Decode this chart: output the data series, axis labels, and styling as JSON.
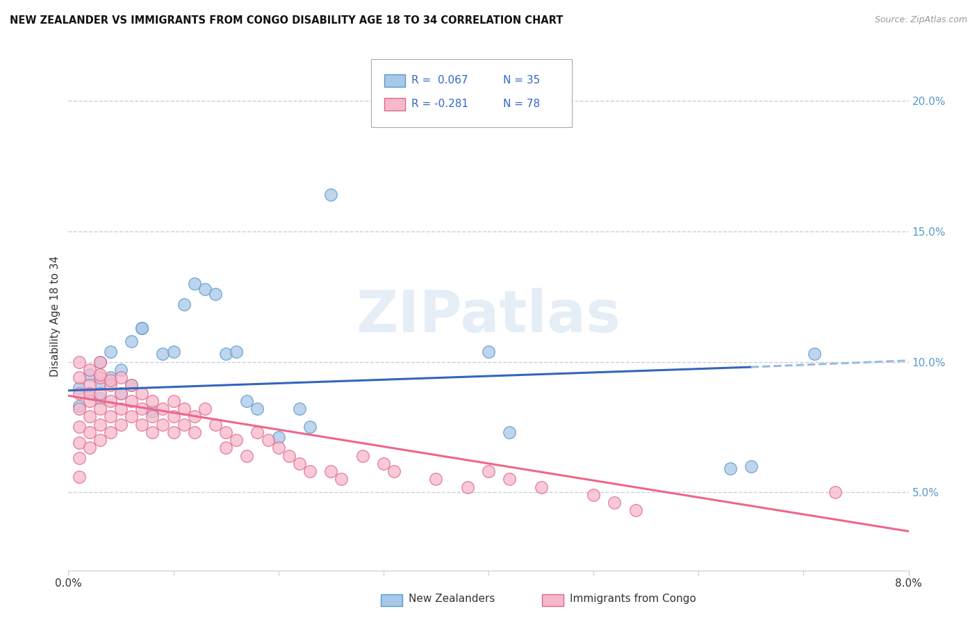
{
  "title": "NEW ZEALANDER VS IMMIGRANTS FROM CONGO DISABILITY AGE 18 TO 34 CORRELATION CHART",
  "source": "Source: ZipAtlas.com",
  "ylabel": "Disability Age 18 to 34",
  "xlim": [
    0.0,
    0.08
  ],
  "ylim": [
    0.02,
    0.215
  ],
  "xticks": [
    0.0,
    0.01,
    0.02,
    0.03,
    0.04,
    0.05,
    0.06,
    0.07,
    0.08
  ],
  "xticklabels": [
    "0.0%",
    "",
    "",
    "",
    "",
    "",
    "",
    "",
    "8.0%"
  ],
  "yticks_right": [
    0.05,
    0.1,
    0.15,
    0.2
  ],
  "ytick_labels_right": [
    "5.0%",
    "10.0%",
    "15.0%",
    "20.0%"
  ],
  "nz_color": "#a8c8e8",
  "nz_edge_color": "#5599cc",
  "congo_color": "#f8b8cc",
  "congo_edge_color": "#dd6688",
  "nz_line_color": "#3366bb",
  "congo_line_color": "#ee6688",
  "dashed_line_color": "#99bbdd",
  "watermark": "ZIPatlas",
  "background_color": "#ffffff",
  "grid_color": "#ccccdd",
  "nz_x": [
    0.001,
    0.001,
    0.002,
    0.002,
    0.003,
    0.003,
    0.003,
    0.004,
    0.004,
    0.005,
    0.005,
    0.006,
    0.006,
    0.007,
    0.007,
    0.008,
    0.009,
    0.01,
    0.011,
    0.012,
    0.013,
    0.014,
    0.015,
    0.016,
    0.017,
    0.018,
    0.02,
    0.022,
    0.023,
    0.025,
    0.04,
    0.042,
    0.063,
    0.065,
    0.071
  ],
  "nz_y": [
    0.09,
    0.083,
    0.095,
    0.088,
    0.092,
    0.086,
    0.1,
    0.094,
    0.104,
    0.097,
    0.088,
    0.091,
    0.108,
    0.113,
    0.113,
    0.081,
    0.103,
    0.104,
    0.122,
    0.13,
    0.128,
    0.126,
    0.103,
    0.104,
    0.085,
    0.082,
    0.071,
    0.082,
    0.075,
    0.164,
    0.104,
    0.073,
    0.059,
    0.06,
    0.103
  ],
  "congo_x": [
    0.001,
    0.001,
    0.001,
    0.001,
    0.001,
    0.001,
    0.001,
    0.001,
    0.002,
    0.002,
    0.002,
    0.002,
    0.002,
    0.002,
    0.002,
    0.003,
    0.003,
    0.003,
    0.003,
    0.003,
    0.003,
    0.003,
    0.004,
    0.004,
    0.004,
    0.004,
    0.004,
    0.005,
    0.005,
    0.005,
    0.005,
    0.006,
    0.006,
    0.006,
    0.007,
    0.007,
    0.007,
    0.008,
    0.008,
    0.008,
    0.009,
    0.009,
    0.01,
    0.01,
    0.01,
    0.011,
    0.011,
    0.012,
    0.012,
    0.013,
    0.014,
    0.015,
    0.015,
    0.016,
    0.017,
    0.018,
    0.019,
    0.02,
    0.021,
    0.022,
    0.023,
    0.025,
    0.026,
    0.028,
    0.03,
    0.031,
    0.035,
    0.038,
    0.04,
    0.042,
    0.045,
    0.05,
    0.052,
    0.054,
    0.073
  ],
  "congo_y": [
    0.088,
    0.094,
    0.1,
    0.082,
    0.075,
    0.069,
    0.063,
    0.056,
    0.091,
    0.097,
    0.085,
    0.079,
    0.073,
    0.067,
    0.088,
    0.094,
    0.088,
    0.082,
    0.076,
    0.095,
    0.1,
    0.07,
    0.091,
    0.085,
    0.079,
    0.073,
    0.093,
    0.088,
    0.082,
    0.076,
    0.094,
    0.085,
    0.079,
    0.091,
    0.082,
    0.076,
    0.088,
    0.079,
    0.073,
    0.085,
    0.076,
    0.082,
    0.073,
    0.085,
    0.079,
    0.076,
    0.082,
    0.073,
    0.079,
    0.082,
    0.076,
    0.073,
    0.067,
    0.07,
    0.064,
    0.073,
    0.07,
    0.067,
    0.064,
    0.061,
    0.058,
    0.058,
    0.055,
    0.064,
    0.061,
    0.058,
    0.055,
    0.052,
    0.058,
    0.055,
    0.052,
    0.049,
    0.046,
    0.043,
    0.05
  ]
}
